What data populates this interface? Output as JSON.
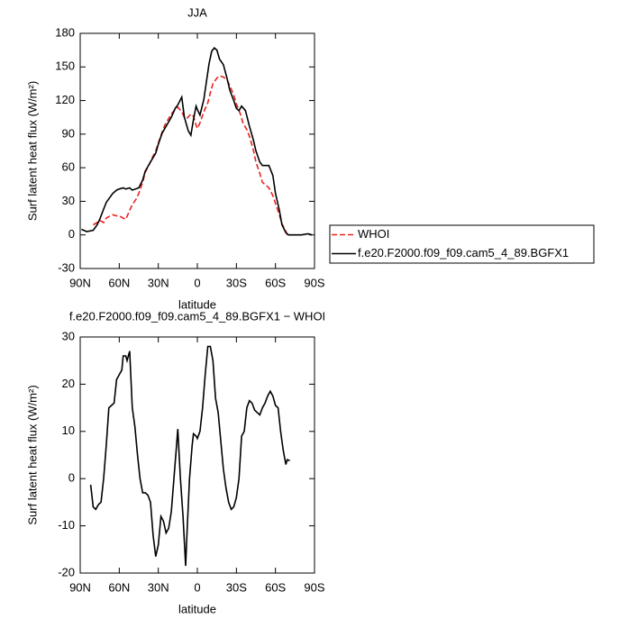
{
  "chart_data": [
    {
      "type": "line",
      "title": "JJA",
      "ylabel": "Surf latent heat flux (W/m²)",
      "xlabel": "latitude",
      "xlim": [
        90,
        -90
      ],
      "xticks": [
        {
          "value": 90,
          "label": "90N"
        },
        {
          "value": 60,
          "label": "60N"
        },
        {
          "value": 30,
          "label": "30N"
        },
        0,
        {
          "value": -30,
          "label": "30S"
        },
        {
          "value": -60,
          "label": "60S"
        },
        {
          "value": -90,
          "label": "90S"
        }
      ],
      "ylim": [
        -30,
        180
      ],
      "yticks": [
        -30,
        0,
        30,
        60,
        90,
        120,
        150,
        180
      ],
      "legend": "right",
      "series": [
        {
          "name": "WHOI",
          "color": "#e8231f",
          "dash": true,
          "x": [
            80,
            77,
            75,
            72,
            70,
            67,
            65,
            62,
            60,
            57,
            55,
            52,
            50,
            47,
            45,
            42,
            40,
            37,
            35,
            32,
            30,
            27,
            25,
            22,
            20,
            17,
            15,
            12,
            10,
            8,
            5,
            3,
            1,
            0,
            -2,
            -5,
            -8,
            -10,
            -12,
            -15,
            -17,
            -20,
            -23,
            -25,
            -28,
            -30,
            -33,
            -35,
            -38,
            -40,
            -43,
            -45,
            -48,
            -50,
            -53,
            -55,
            -58,
            -60,
            -63,
            -65,
            -68,
            -70
          ],
          "values": [
            9,
            11,
            13,
            11,
            15,
            17,
            18,
            17,
            17,
            15,
            14,
            22,
            27,
            32,
            37,
            47,
            56,
            63,
            68,
            75,
            82,
            92,
            98,
            104,
            108,
            112,
            114,
            110,
            105,
            104,
            108,
            106,
            98,
            95,
            100,
            110,
            118,
            127,
            135,
            140,
            142,
            141,
            138,
            133,
            125,
            117,
            108,
            100,
            94,
            88,
            76,
            65,
            55,
            47,
            44,
            42,
            35,
            28,
            18,
            10,
            3,
            -2
          ]
        },
        {
          "name": "f.e20.F2000.f09_f09.cam5_4_89.BGFX1",
          "color": "#000000",
          "dash": false,
          "x": [
            89,
            85,
            80,
            77,
            75,
            72,
            70,
            65,
            62,
            60,
            57,
            55,
            52,
            50,
            45,
            42,
            40,
            35,
            32,
            30,
            27,
            25,
            20,
            17,
            15,
            12,
            10,
            7,
            5,
            3,
            1,
            0,
            -2,
            -5,
            -7,
            -9,
            -11,
            -13,
            -15,
            -17,
            -20,
            -23,
            -25,
            -28,
            -30,
            -32,
            -34,
            -37,
            -40,
            -43,
            -45,
            -48,
            -50,
            -55,
            -58,
            -60,
            -63,
            -65,
            -68,
            -70,
            -75,
            -80,
            -85,
            -88
          ],
          "values": [
            5,
            3,
            4,
            9,
            14,
            23,
            29,
            37,
            40,
            41,
            42,
            41,
            42,
            40,
            42,
            49,
            57,
            67,
            73,
            81,
            91,
            95,
            105,
            113,
            116,
            123,
            105,
            93,
            89,
            103,
            115,
            112,
            107,
            121,
            137,
            153,
            164,
            167,
            165,
            157,
            152,
            139,
            129,
            120,
            113,
            111,
            115,
            111,
            97,
            85,
            75,
            65,
            62,
            62,
            53,
            37,
            22,
            9,
            2,
            0,
            0,
            0,
            1,
            0
          ]
        }
      ]
    },
    {
      "type": "line",
      "title": "f.e20.F2000.f09_f09.cam5_4_89.BGFX1 − WHOI",
      "ylabel": "Surf latent heat flux (W/m²)",
      "xlabel": "latitude",
      "xlim": [
        90,
        -90
      ],
      "xticks": [
        {
          "value": 90,
          "label": "90N"
        },
        {
          "value": 60,
          "label": "60N"
        },
        {
          "value": 30,
          "label": "30N"
        },
        0,
        {
          "value": -30,
          "label": "30S"
        },
        {
          "value": -60,
          "label": "60S"
        },
        {
          "value": -90,
          "label": "90S"
        }
      ],
      "ylim": [
        -20,
        30
      ],
      "yticks": [
        -20,
        -10,
        0,
        10,
        20,
        30
      ],
      "series": [
        {
          "color": "#000000",
          "dash": false,
          "x": [
            82,
            80,
            78,
            76,
            74,
            72,
            70,
            68,
            66,
            64,
            62,
            60,
            58,
            57,
            55,
            54,
            52,
            50,
            48,
            46,
            44,
            42,
            40,
            38,
            36,
            34,
            32,
            30,
            28,
            26,
            24,
            22,
            20,
            18,
            16,
            15,
            13,
            11,
            9,
            8,
            6,
            4,
            3,
            1,
            0,
            -2,
            -4,
            -6,
            -8,
            -10,
            -12,
            -14,
            -16,
            -18,
            -20,
            -22,
            -24,
            -26,
            -28,
            -30,
            -32,
            -34,
            -36,
            -38,
            -40,
            -42,
            -44,
            -46,
            -48,
            -50,
            -52,
            -54,
            -56,
            -58,
            -60,
            -62,
            -64,
            -66,
            -68,
            -69,
            -71
          ],
          "values": [
            -1.3,
            -6,
            -6.5,
            -5.5,
            -5,
            0,
            7,
            15,
            15.5,
            16,
            21,
            22,
            23,
            26,
            26,
            25,
            27,
            15,
            11,
            5,
            0,
            -3,
            -3,
            -3.5,
            -5,
            -12,
            -16.5,
            -14,
            -8,
            -9,
            -11.5,
            -10.5,
            -7,
            0,
            7,
            10.5,
            0,
            -8,
            -18.5,
            -12,
            0,
            7,
            9.5,
            9,
            8.5,
            10,
            15,
            22,
            28,
            28,
            25,
            17,
            14,
            8,
            2,
            -2,
            -5,
            -6.5,
            -6,
            -4,
            0,
            9,
            10,
            15,
            16.5,
            16,
            14.5,
            14,
            13.5,
            15,
            16,
            17.5,
            18.5,
            17.5,
            15.5,
            15,
            10,
            6,
            3,
            4,
            3.8
          ]
        }
      ]
    }
  ]
}
